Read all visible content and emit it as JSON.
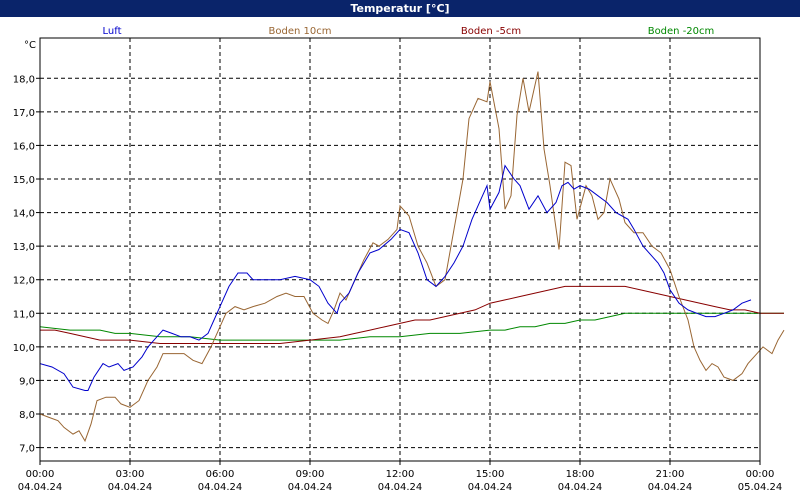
{
  "window": {
    "title": "Temperatur [°C]"
  },
  "colors": {
    "Luft": "#0000cc",
    "Boden 10cm": "#996633",
    "Boden -5cm": "#880000",
    "Boden -20cm": "#008800"
  },
  "chart_data": {
    "type": "line",
    "title": "Temperatur [°C]",
    "ylabel": "°C",
    "xlabel": "",
    "ylim": [
      6.6,
      19.2
    ],
    "xlim": [
      0,
      24
    ],
    "grid": true,
    "legend_position": "top",
    "yticks": [
      7,
      8,
      9,
      10,
      11,
      12,
      13,
      14,
      15,
      16,
      17,
      18
    ],
    "ytick_labels": [
      "7,0",
      "8,0",
      "9,0",
      "10,0",
      "11,0",
      "12,0",
      "13,0",
      "14,0",
      "15,0",
      "16,0",
      "17,0",
      "18,0"
    ],
    "xticks": [
      0,
      3,
      6,
      9,
      12,
      15,
      18,
      21,
      24
    ],
    "xtick_labels": [
      {
        "time": "00:00",
        "date": "04.04.24"
      },
      {
        "time": "03:00",
        "date": "04.04.24"
      },
      {
        "time": "06:00",
        "date": "04.04.24"
      },
      {
        "time": "09:00",
        "date": "04.04.24"
      },
      {
        "time": "12:00",
        "date": "04.04.24"
      },
      {
        "time": "15:00",
        "date": "04.04.24"
      },
      {
        "time": "18:00",
        "date": "04.04.24"
      },
      {
        "time": "21:00",
        "date": "04.04.24"
      },
      {
        "time": "00:00",
        "date": "05.04.24"
      }
    ],
    "series": [
      {
        "name": "Luft",
        "points": [
          [
            0,
            9.5
          ],
          [
            0.4,
            9.4
          ],
          [
            0.8,
            9.2
          ],
          [
            1.1,
            8.8
          ],
          [
            1.5,
            8.7
          ],
          [
            1.6,
            8.7
          ],
          [
            1.8,
            9.1
          ],
          [
            2.1,
            9.5
          ],
          [
            2.3,
            9.4
          ],
          [
            2.6,
            9.5
          ],
          [
            2.8,
            9.3
          ],
          [
            3.1,
            9.4
          ],
          [
            3.4,
            9.7
          ],
          [
            3.6,
            10.0
          ],
          [
            3.8,
            10.2
          ],
          [
            4.1,
            10.5
          ],
          [
            4.4,
            10.4
          ],
          [
            4.7,
            10.3
          ],
          [
            5.0,
            10.3
          ],
          [
            5.3,
            10.2
          ],
          [
            5.6,
            10.4
          ],
          [
            5.8,
            10.8
          ],
          [
            6.0,
            11.2
          ],
          [
            6.3,
            11.8
          ],
          [
            6.6,
            12.2
          ],
          [
            6.9,
            12.2
          ],
          [
            7.1,
            12.0
          ],
          [
            7.5,
            12.0
          ],
          [
            8.0,
            12.0
          ],
          [
            8.5,
            12.1
          ],
          [
            9.0,
            12.0
          ],
          [
            9.3,
            11.8
          ],
          [
            9.6,
            11.3
          ],
          [
            9.9,
            11.0
          ],
          [
            10.0,
            11.3
          ],
          [
            10.3,
            11.6
          ],
          [
            10.6,
            12.2
          ],
          [
            11.0,
            12.8
          ],
          [
            11.3,
            12.9
          ],
          [
            11.7,
            13.2
          ],
          [
            12.0,
            13.5
          ],
          [
            12.3,
            13.4
          ],
          [
            12.6,
            12.8
          ],
          [
            12.9,
            12.0
          ],
          [
            13.2,
            11.8
          ],
          [
            13.5,
            12.1
          ],
          [
            13.8,
            12.5
          ],
          [
            14.1,
            13.0
          ],
          [
            14.4,
            13.8
          ],
          [
            14.7,
            14.4
          ],
          [
            14.9,
            14.8
          ],
          [
            15.0,
            14.1
          ],
          [
            15.3,
            14.6
          ],
          [
            15.5,
            15.4
          ],
          [
            15.8,
            15.0
          ],
          [
            16.0,
            14.8
          ],
          [
            16.3,
            14.1
          ],
          [
            16.6,
            14.5
          ],
          [
            16.9,
            14.0
          ],
          [
            17.2,
            14.3
          ],
          [
            17.4,
            14.8
          ],
          [
            17.6,
            14.9
          ],
          [
            17.8,
            14.7
          ],
          [
            18.0,
            14.8
          ],
          [
            18.3,
            14.7
          ],
          [
            18.6,
            14.5
          ],
          [
            18.9,
            14.3
          ],
          [
            19.2,
            14.0
          ],
          [
            19.6,
            13.8
          ],
          [
            19.8,
            13.5
          ],
          [
            20.1,
            13.0
          ],
          [
            20.4,
            12.7
          ],
          [
            20.6,
            12.5
          ],
          [
            20.8,
            12.2
          ],
          [
            21.0,
            11.7
          ],
          [
            21.3,
            11.3
          ],
          [
            21.6,
            11.1
          ],
          [
            21.9,
            11.0
          ],
          [
            22.2,
            10.9
          ],
          [
            22.5,
            10.9
          ],
          [
            22.8,
            11.0
          ],
          [
            23.1,
            11.1
          ],
          [
            23.4,
            11.3
          ],
          [
            23.7,
            11.4
          ]
        ]
      },
      {
        "name": "Boden 10cm",
        "points": [
          [
            0,
            8.0
          ],
          [
            0.3,
            7.9
          ],
          [
            0.6,
            7.8
          ],
          [
            0.8,
            7.6
          ],
          [
            1.1,
            7.4
          ],
          [
            1.3,
            7.5
          ],
          [
            1.5,
            7.2
          ],
          [
            1.7,
            7.7
          ],
          [
            1.9,
            8.4
          ],
          [
            2.2,
            8.5
          ],
          [
            2.5,
            8.5
          ],
          [
            2.7,
            8.3
          ],
          [
            3.0,
            8.2
          ],
          [
            3.3,
            8.4
          ],
          [
            3.6,
            9.0
          ],
          [
            3.9,
            9.4
          ],
          [
            4.1,
            9.8
          ],
          [
            4.5,
            9.8
          ],
          [
            4.8,
            9.8
          ],
          [
            5.1,
            9.6
          ],
          [
            5.4,
            9.5
          ],
          [
            5.7,
            10.0
          ],
          [
            6.0,
            10.6
          ],
          [
            6.2,
            11.0
          ],
          [
            6.5,
            11.2
          ],
          [
            6.8,
            11.1
          ],
          [
            7.1,
            11.2
          ],
          [
            7.5,
            11.3
          ],
          [
            7.9,
            11.5
          ],
          [
            8.2,
            11.6
          ],
          [
            8.5,
            11.5
          ],
          [
            8.8,
            11.5
          ],
          [
            9.1,
            11.0
          ],
          [
            9.4,
            10.8
          ],
          [
            9.6,
            10.7
          ],
          [
            9.8,
            11.1
          ],
          [
            10.0,
            11.6
          ],
          [
            10.2,
            11.4
          ],
          [
            10.5,
            12.0
          ],
          [
            10.8,
            12.6
          ],
          [
            11.1,
            13.1
          ],
          [
            11.3,
            13.0
          ],
          [
            11.6,
            13.2
          ],
          [
            11.9,
            13.5
          ],
          [
            12.0,
            14.2
          ],
          [
            12.3,
            13.9
          ],
          [
            12.6,
            13.0
          ],
          [
            12.9,
            12.5
          ],
          [
            13.2,
            11.8
          ],
          [
            13.5,
            12.0
          ],
          [
            13.8,
            13.5
          ],
          [
            14.1,
            15.0
          ],
          [
            14.3,
            16.8
          ],
          [
            14.6,
            17.4
          ],
          [
            14.9,
            17.3
          ],
          [
            15.0,
            17.9
          ],
          [
            15.3,
            16.5
          ],
          [
            15.5,
            14.1
          ],
          [
            15.7,
            14.5
          ],
          [
            15.9,
            16.9
          ],
          [
            16.1,
            18.0
          ],
          [
            16.3,
            17.0
          ],
          [
            16.6,
            18.2
          ],
          [
            16.8,
            15.9
          ],
          [
            17.0,
            14.8
          ],
          [
            17.3,
            12.9
          ],
          [
            17.5,
            15.5
          ],
          [
            17.7,
            15.4
          ],
          [
            17.9,
            13.8
          ],
          [
            18.2,
            14.8
          ],
          [
            18.4,
            14.5
          ],
          [
            18.6,
            13.8
          ],
          [
            18.8,
            14.0
          ],
          [
            19.0,
            15.0
          ],
          [
            19.3,
            14.4
          ],
          [
            19.5,
            13.7
          ],
          [
            19.8,
            13.4
          ],
          [
            20.1,
            13.4
          ],
          [
            20.4,
            13.0
          ],
          [
            20.7,
            12.8
          ],
          [
            21.0,
            12.3
          ],
          [
            21.3,
            11.5
          ],
          [
            21.6,
            10.8
          ],
          [
            21.8,
            10.0
          ],
          [
            22.0,
            9.6
          ],
          [
            22.2,
            9.3
          ],
          [
            22.4,
            9.5
          ],
          [
            22.6,
            9.4
          ],
          [
            22.8,
            9.1
          ],
          [
            23.1,
            9.0
          ],
          [
            23.4,
            9.2
          ],
          [
            23.6,
            9.5
          ],
          [
            23.9,
            9.8
          ],
          [
            24.1,
            10.0
          ],
          [
            24.4,
            9.8
          ],
          [
            24.6,
            10.2
          ],
          [
            24.8,
            10.5
          ]
        ]
      },
      {
        "name": "Boden -5cm",
        "points": [
          [
            0,
            10.5
          ],
          [
            0.5,
            10.5
          ],
          [
            1.0,
            10.4
          ],
          [
            1.5,
            10.3
          ],
          [
            2.0,
            10.2
          ],
          [
            2.5,
            10.2
          ],
          [
            3.0,
            10.2
          ],
          [
            4.0,
            10.1
          ],
          [
            5.0,
            10.1
          ],
          [
            6.0,
            10.1
          ],
          [
            7.0,
            10.1
          ],
          [
            8.0,
            10.1
          ],
          [
            9.0,
            10.2
          ],
          [
            10.0,
            10.3
          ],
          [
            10.5,
            10.4
          ],
          [
            11.0,
            10.5
          ],
          [
            11.5,
            10.6
          ],
          [
            12.0,
            10.7
          ],
          [
            12.5,
            10.8
          ],
          [
            13.0,
            10.8
          ],
          [
            13.5,
            10.9
          ],
          [
            14.0,
            11.0
          ],
          [
            14.5,
            11.1
          ],
          [
            15.0,
            11.3
          ],
          [
            15.5,
            11.4
          ],
          [
            16.0,
            11.5
          ],
          [
            16.5,
            11.6
          ],
          [
            17.0,
            11.7
          ],
          [
            17.5,
            11.8
          ],
          [
            18.0,
            11.8
          ],
          [
            18.5,
            11.8
          ],
          [
            19.0,
            11.8
          ],
          [
            19.5,
            11.8
          ],
          [
            20.0,
            11.7
          ],
          [
            20.5,
            11.6
          ],
          [
            21.0,
            11.5
          ],
          [
            21.5,
            11.4
          ],
          [
            22.0,
            11.3
          ],
          [
            22.5,
            11.2
          ],
          [
            23.0,
            11.1
          ],
          [
            23.5,
            11.1
          ],
          [
            24.0,
            11.0
          ],
          [
            24.8,
            11.0
          ]
        ]
      },
      {
        "name": "Boden -20cm",
        "points": [
          [
            0,
            10.6
          ],
          [
            1.0,
            10.5
          ],
          [
            2.0,
            10.5
          ],
          [
            2.5,
            10.4
          ],
          [
            3.0,
            10.4
          ],
          [
            4.0,
            10.3
          ],
          [
            5.0,
            10.3
          ],
          [
            6.0,
            10.2
          ],
          [
            7.0,
            10.2
          ],
          [
            8.0,
            10.2
          ],
          [
            9.0,
            10.2
          ],
          [
            10.0,
            10.2
          ],
          [
            11.0,
            10.3
          ],
          [
            12.0,
            10.3
          ],
          [
            13.0,
            10.4
          ],
          [
            14.0,
            10.4
          ],
          [
            15.0,
            10.5
          ],
          [
            15.5,
            10.5
          ],
          [
            16.0,
            10.6
          ],
          [
            16.5,
            10.6
          ],
          [
            17.0,
            10.7
          ],
          [
            17.5,
            10.7
          ],
          [
            18.0,
            10.8
          ],
          [
            18.5,
            10.8
          ],
          [
            19.0,
            10.9
          ],
          [
            19.5,
            11.0
          ],
          [
            20.0,
            11.0
          ],
          [
            21.0,
            11.0
          ],
          [
            22.0,
            11.0
          ],
          [
            23.0,
            11.0
          ],
          [
            24.0,
            11.0
          ],
          [
            24.8,
            11.0
          ]
        ]
      }
    ]
  }
}
